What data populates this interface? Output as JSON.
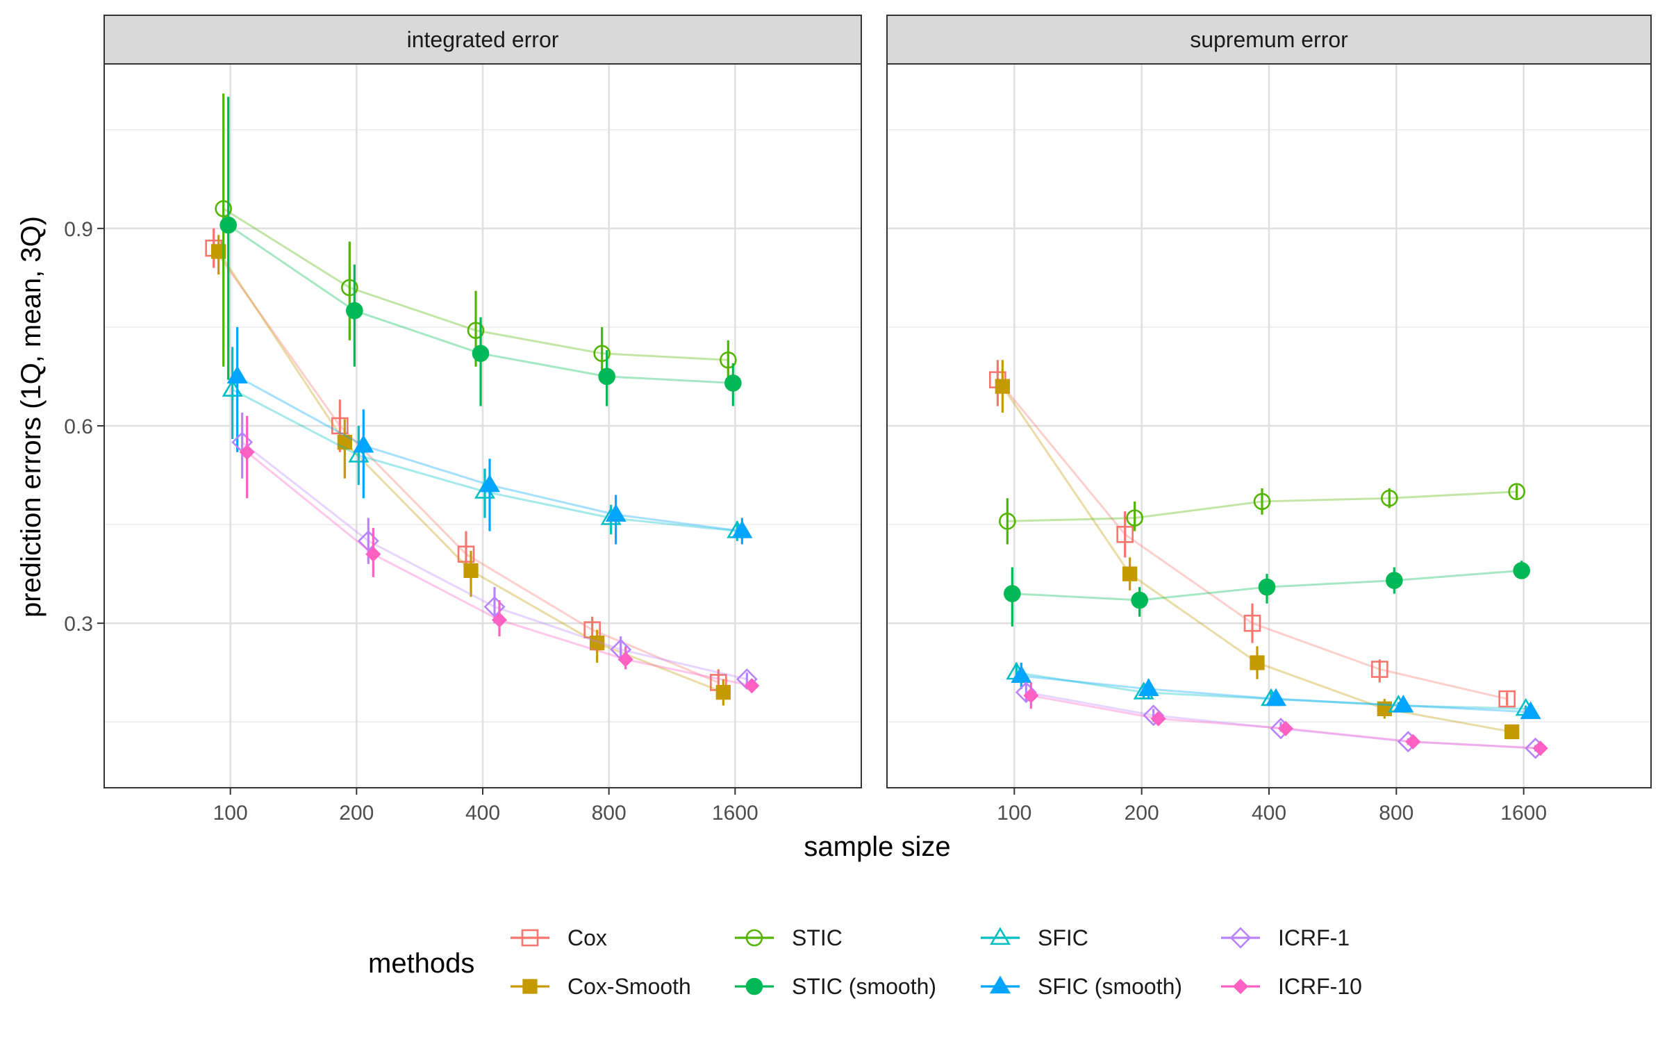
{
  "chart_data": {
    "type": "line",
    "x_label": "sample size",
    "y_label": "prediction errors (1Q, mean, 3Q)",
    "x_categories": [
      "100",
      "200",
      "400",
      "800",
      "1600"
    ],
    "y_ticks": [
      "0.3",
      "0.6",
      "0.9"
    ],
    "y_range": [
      0.05,
      1.15
    ],
    "grid": true,
    "legend_title": "methods",
    "legend_position": "bottom",
    "panels": [
      {
        "title": "integrated error"
      },
      {
        "title": "supremum error"
      }
    ],
    "series": [
      {
        "name": "Cox",
        "color": "#F8766D",
        "marker": "open-square",
        "panels": [
          {
            "mean": [
              0.87,
              0.6,
              0.405,
              0.29,
              0.21
            ],
            "q1": [
              0.84,
              0.56,
              0.37,
              0.265,
              0.195
            ],
            "q3": [
              0.9,
              0.64,
              0.44,
              0.31,
              0.23
            ]
          },
          {
            "mean": [
              0.67,
              0.435,
              0.3,
              0.23,
              0.185
            ],
            "q1": [
              0.63,
              0.4,
              0.27,
              0.21,
              0.175
            ],
            "q3": [
              0.7,
              0.47,
              0.33,
              0.245,
              0.195
            ]
          }
        ]
      },
      {
        "name": "Cox-Smooth",
        "color": "#C49A00",
        "marker": "filled-square",
        "panels": [
          {
            "mean": [
              0.865,
              0.575,
              0.38,
              0.27,
              0.195
            ],
            "q1": [
              0.83,
              0.52,
              0.34,
              0.24,
              0.175
            ],
            "q3": [
              0.89,
              0.61,
              0.41,
              0.29,
              0.215
            ]
          },
          {
            "mean": [
              0.66,
              0.375,
              0.24,
              0.17,
              0.135
            ],
            "q1": [
              0.62,
              0.35,
              0.215,
              0.155,
              0.125
            ],
            "q3": [
              0.7,
              0.4,
              0.265,
              0.185,
              0.145
            ]
          }
        ]
      },
      {
        "name": "STIC",
        "color": "#53B400",
        "marker": "open-circle",
        "panels": [
          {
            "mean": [
              0.93,
              0.81,
              0.745,
              0.71,
              0.7
            ],
            "q1": [
              0.69,
              0.73,
              0.69,
              0.67,
              0.67
            ],
            "q3": [
              1.105,
              0.88,
              0.805,
              0.75,
              0.73
            ]
          },
          {
            "mean": [
              0.455,
              0.46,
              0.485,
              0.49,
              0.5
            ],
            "q1": [
              0.42,
              0.44,
              0.465,
              0.475,
              0.49
            ],
            "q3": [
              0.49,
              0.485,
              0.505,
              0.505,
              0.51
            ]
          }
        ]
      },
      {
        "name": "STIC (smooth)",
        "color": "#00B956",
        "marker": "filled-circle",
        "panels": [
          {
            "mean": [
              0.905,
              0.775,
              0.71,
              0.675,
              0.665
            ],
            "q1": [
              0.67,
              0.69,
              0.63,
              0.63,
              0.63
            ],
            "q3": [
              1.1,
              0.845,
              0.765,
              0.715,
              0.695
            ]
          },
          {
            "mean": [
              0.345,
              0.335,
              0.355,
              0.365,
              0.38
            ],
            "q1": [
              0.295,
              0.31,
              0.33,
              0.345,
              0.37
            ],
            "q3": [
              0.385,
              0.355,
              0.375,
              0.385,
              0.395
            ]
          }
        ]
      },
      {
        "name": "SFIC",
        "color": "#00BFC4",
        "marker": "open-triangle",
        "panels": [
          {
            "mean": [
              0.655,
              0.555,
              0.5,
              0.46,
              0.44
            ],
            "q1": [
              0.58,
              0.51,
              0.46,
              0.435,
              0.425
            ],
            "q3": [
              0.72,
              0.6,
              0.535,
              0.48,
              0.455
            ]
          },
          {
            "mean": [
              0.225,
              0.195,
              0.185,
              0.175,
              0.17
            ],
            "q1": [
              0.21,
              0.185,
              0.175,
              0.17,
              0.165
            ],
            "q3": [
              0.24,
              0.205,
              0.195,
              0.18,
              0.175
            ]
          }
        ]
      },
      {
        "name": "SFIC (smooth)",
        "color": "#00A5FF",
        "marker": "filled-triangle",
        "panels": [
          {
            "mean": [
              0.675,
              0.57,
              0.51,
              0.465,
              0.44
            ],
            "q1": [
              0.56,
              0.49,
              0.44,
              0.42,
              0.42
            ],
            "q3": [
              0.75,
              0.625,
              0.55,
              0.495,
              0.46
            ]
          },
          {
            "mean": [
              0.22,
              0.2,
              0.185,
              0.175,
              0.165
            ],
            "q1": [
              0.2,
              0.185,
              0.175,
              0.165,
              0.16
            ],
            "q3": [
              0.24,
              0.215,
              0.195,
              0.18,
              0.175
            ]
          }
        ]
      },
      {
        "name": "ICRF-1",
        "color": "#B983FF",
        "marker": "open-diamond",
        "panels": [
          {
            "mean": [
              0.575,
              0.425,
              0.325,
              0.26,
              0.215
            ],
            "q1": [
              0.52,
              0.39,
              0.3,
              0.245,
              0.205
            ],
            "q3": [
              0.62,
              0.46,
              0.355,
              0.28,
              0.225
            ]
          },
          {
            "mean": [
              0.195,
              0.16,
              0.14,
              0.12,
              0.11
            ],
            "q1": [
              0.18,
              0.15,
              0.135,
              0.115,
              0.105
            ],
            "q3": [
              0.21,
              0.17,
              0.15,
              0.125,
              0.115
            ]
          }
        ]
      },
      {
        "name": "ICRF-10",
        "color": "#FF61C3",
        "marker": "filled-diamond",
        "panels": [
          {
            "mean": [
              0.56,
              0.405,
              0.305,
              0.245,
              0.205
            ],
            "q1": [
              0.49,
              0.37,
              0.28,
              0.23,
              0.195
            ],
            "q3": [
              0.615,
              0.445,
              0.335,
              0.265,
              0.215
            ]
          },
          {
            "mean": [
              0.19,
              0.155,
              0.14,
              0.12,
              0.11
            ],
            "q1": [
              0.17,
              0.145,
              0.13,
              0.115,
              0.105
            ],
            "q3": [
              0.21,
              0.165,
              0.15,
              0.125,
              0.115
            ]
          }
        ]
      }
    ]
  }
}
